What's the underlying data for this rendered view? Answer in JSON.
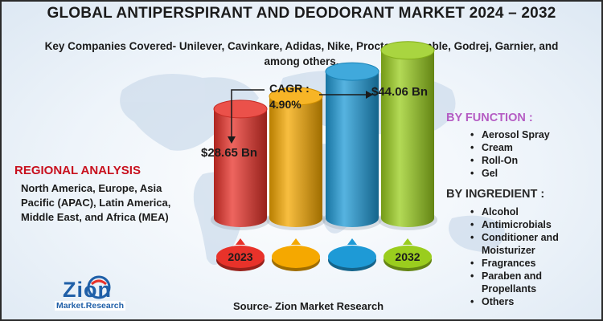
{
  "title": "GLOBAL ANTIPERSPIRANT AND DEODORANT MARKET 2024 – 2032",
  "subtitle": "Key Companies Covered- Unilever, Cavinkare, Adidas, Nike, Procter & Gamble, Godrej, Garnier, and among others.",
  "cagr": {
    "label": "CAGR :",
    "value": "4.90%"
  },
  "regional": {
    "heading": "REGIONAL ANALYSIS",
    "text": "North America, Europe, Asia Pacific (APAC), Latin America, Middle East, and Africa (MEA)"
  },
  "by_function": {
    "heading": "BY FUNCTION :",
    "items": [
      "Aerosol Spray",
      "Cream",
      "Roll-On",
      "Gel"
    ]
  },
  "by_ingredient": {
    "heading": "BY INGREDIENT :",
    "items": [
      "Alcohol",
      "Antimicrobials",
      "Conditioner and Moisturizer",
      "Fragrances",
      "Paraben and Propellants",
      "Others"
    ]
  },
  "source": "Source- Zion Market Research",
  "logo": {
    "name": "Zion",
    "sub": "Market.Research",
    "icon": "zion-logo-icon"
  },
  "chart_data": {
    "type": "bar",
    "categories": [
      "2023",
      "",
      "",
      "2032"
    ],
    "values": [
      28.65,
      32.0,
      38.5,
      44.06
    ],
    "value_labels": [
      "$28.65 Bn",
      "",
      "",
      "$44.06 Bn"
    ],
    "colors": [
      "#e8322a",
      "#f5a800",
      "#1e9ad6",
      "#9acd1e"
    ],
    "ylim": [
      0,
      48
    ],
    "grid": false,
    "legend": "none"
  }
}
